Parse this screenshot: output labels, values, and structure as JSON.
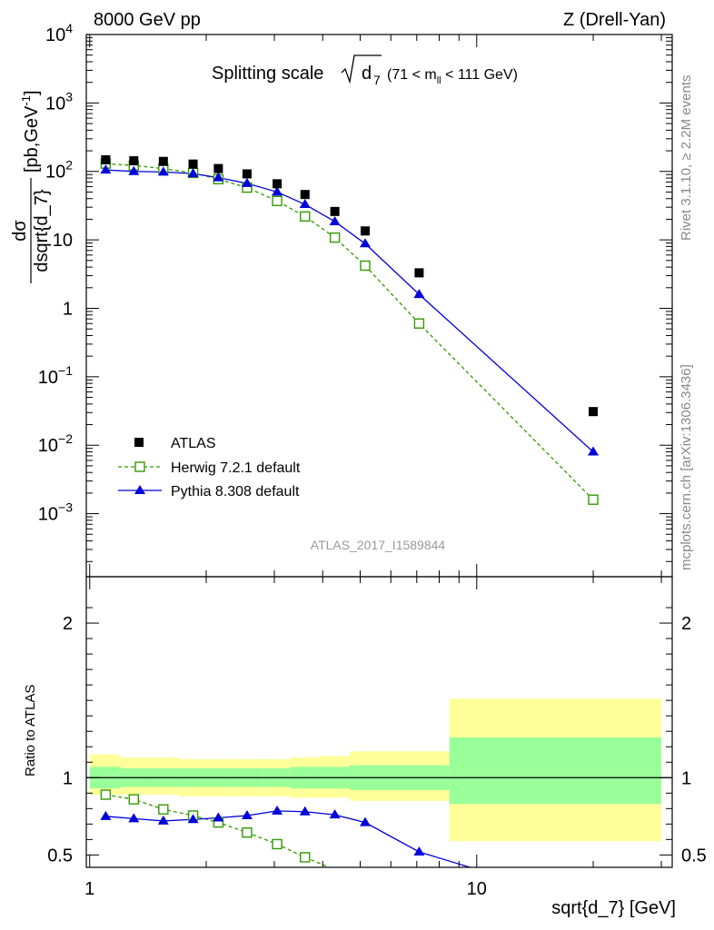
{
  "header": {
    "left": "8000 GeV pp",
    "right": "Z (Drell-Yan)"
  },
  "side_labels": {
    "rivet": "Rivet 3.1.10, ≥ 2.2M events",
    "mcplots": "mcplots.cern.ch [arXiv:1306.3436]"
  },
  "watermark": "ATLAS_2017_I1589844",
  "colors": {
    "data": "#000000",
    "herwig": "#339900",
    "pythia": "#0000dd",
    "band_inner": "#99ff99",
    "band_outer": "#ffff99"
  },
  "chart_data": [
    {
      "type": "scatter",
      "title_main": "Splitting scale",
      "title_var": "d",
      "title_var_sub": "7",
      "title_range_pre": "(71 < m",
      "title_range_sub": "ll",
      "title_range_post": " < 111 GeV)",
      "ylabel_num": "dσ",
      "ylabel_den": "dsqrt{d_7}",
      "ylabel_units": "[pb,GeV",
      "ylabel_units_sup": "-1",
      "ylabel_units_end": "]",
      "xscale": "log",
      "yscale": "log",
      "xlim": [
        0.98,
        32
      ],
      "ylim": [
        0.00012,
        10000
      ],
      "yticks": [
        {
          "v": 10000,
          "base": "10",
          "exp": "4"
        },
        {
          "v": 1000,
          "base": "10",
          "exp": "3"
        },
        {
          "v": 100,
          "base": "10",
          "exp": "2"
        },
        {
          "v": 10,
          "base": "10",
          "exp": ""
        },
        {
          "v": 1,
          "base": "1",
          "exp": ""
        },
        {
          "v": 0.1,
          "base": "10",
          "exp": "−1"
        },
        {
          "v": 0.01,
          "base": "10",
          "exp": "−2"
        },
        {
          "v": 0.001,
          "base": "10",
          "exp": "−3"
        }
      ],
      "legend_position": "bottom-left",
      "series": [
        {
          "name": "ATLAS",
          "style": "black-square",
          "x": [
            1.1,
            1.3,
            1.55,
            1.85,
            2.15,
            2.55,
            3.05,
            3.6,
            4.3,
            5.15,
            7.1,
            20
          ],
          "y": [
            148,
            143,
            140,
            128,
            110,
            92,
            66,
            46,
            26,
            13.5,
            3.3,
            0.031
          ]
        },
        {
          "name": "Herwig 7.2.1 default",
          "style": "green-open-square-dashed",
          "x": [
            1.1,
            1.3,
            1.55,
            1.85,
            2.15,
            2.55,
            3.05,
            3.6,
            4.3,
            5.15,
            7.1,
            20
          ],
          "y": [
            130,
            122,
            110,
            95,
            77,
            58,
            37,
            22,
            10.8,
            4.2,
            0.6,
            0.0016
          ]
        },
        {
          "name": "Pythia 8.308 default",
          "style": "blue-triangle-solid",
          "x": [
            1.1,
            1.3,
            1.55,
            1.85,
            2.15,
            2.55,
            3.05,
            3.6,
            4.3,
            5.15,
            7.1,
            20
          ],
          "y": [
            105,
            100,
            98,
            93,
            81,
            67,
            50,
            33,
            18.5,
            8.8,
            1.6,
            0.008
          ]
        }
      ]
    },
    {
      "type": "line",
      "ylabel": "Ratio to ATLAS",
      "xlabel": "sqrt{d_7} [GeV]",
      "xscale": "log",
      "xlim": [
        0.98,
        32
      ],
      "ylim": [
        0.42,
        2.3
      ],
      "yticks": [
        0.5,
        1,
        2
      ],
      "ytick_labels": [
        "0.5",
        "1",
        "2"
      ],
      "xticks": [
        1,
        10
      ],
      "xtick_labels": [
        "1",
        "10"
      ],
      "bands": {
        "edges": [
          1.0,
          1.2,
          1.4,
          1.7,
          2.0,
          2.3,
          2.8,
          3.3,
          3.9,
          4.7,
          5.6,
          8.5,
          30
        ],
        "inner": [
          [
            0.93,
            1.07
          ],
          [
            0.94,
            1.06
          ],
          [
            0.94,
            1.06
          ],
          [
            0.94,
            1.06
          ],
          [
            0.94,
            1.06
          ],
          [
            0.94,
            1.06
          ],
          [
            0.94,
            1.06
          ],
          [
            0.93,
            1.07
          ],
          [
            0.93,
            1.07
          ],
          [
            0.92,
            1.08
          ],
          [
            0.92,
            1.08
          ],
          [
            0.83,
            1.26
          ]
        ],
        "outer": [
          [
            0.89,
            1.15
          ],
          [
            0.89,
            1.13
          ],
          [
            0.89,
            1.13
          ],
          [
            0.88,
            1.12
          ],
          [
            0.88,
            1.12
          ],
          [
            0.88,
            1.12
          ],
          [
            0.88,
            1.12
          ],
          [
            0.87,
            1.13
          ],
          [
            0.87,
            1.14
          ],
          [
            0.85,
            1.17
          ],
          [
            0.85,
            1.17
          ],
          [
            0.59,
            1.51
          ]
        ]
      },
      "series": [
        {
          "name": "Herwig 7.2.1 default",
          "style": "green-open-square-dashed",
          "x": [
            1.1,
            1.3,
            1.55,
            1.85,
            2.15,
            2.55,
            3.05,
            3.6,
            4.3,
            4.6
          ],
          "y": [
            0.89,
            0.86,
            0.795,
            0.755,
            0.71,
            0.645,
            0.57,
            0.485,
            0.405,
            0.36
          ]
        },
        {
          "name": "Pythia 8.308 default",
          "style": "blue-triangle-solid",
          "x": [
            1.1,
            1.3,
            1.55,
            1.85,
            2.15,
            2.55,
            3.05,
            3.6,
            4.3,
            5.15,
            7.1,
            11.5
          ],
          "y": [
            0.75,
            0.735,
            0.72,
            0.73,
            0.74,
            0.755,
            0.785,
            0.78,
            0.76,
            0.71,
            0.52,
            0.36
          ]
        }
      ]
    }
  ]
}
